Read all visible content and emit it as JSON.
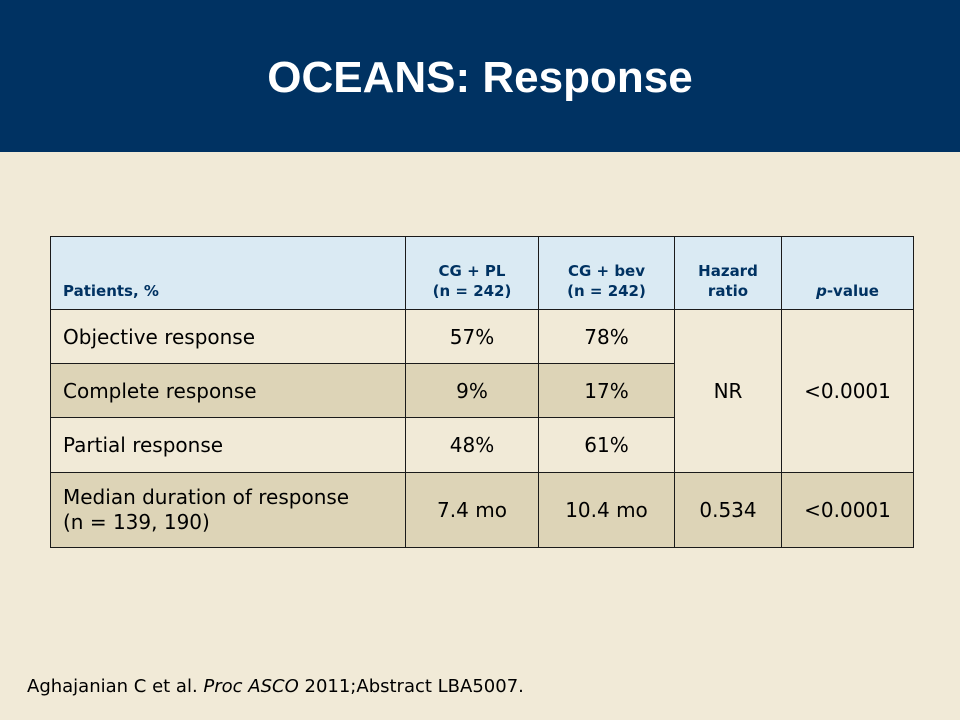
{
  "slide": {
    "title": "OCEANS: Response"
  },
  "table": {
    "headers": {
      "col1": "Patients, %",
      "col2_line1": "CG + PL",
      "col2_line2": "(n = 242)",
      "col3_line1": "CG + bev",
      "col3_line2": "(n = 242)",
      "col4_line1": "Hazard",
      "col4_line2": "ratio",
      "col5_italic": "p",
      "col5_rest": "-value"
    },
    "rows": [
      {
        "label": "Objective response",
        "cgpl": "57%",
        "cgbev": "78%"
      },
      {
        "label": "Complete response",
        "cgpl": "9%",
        "cgbev": "17%"
      },
      {
        "label": "Partial response",
        "cgpl": "48%",
        "cgbev": "61%"
      }
    ],
    "merged": {
      "hazard_ratio": "NR",
      "p_value": "<0.0001"
    },
    "last_row": {
      "label_line1": "Median duration of response",
      "label_line2": "(n = 139, 190)",
      "cgpl": "7.4 mo",
      "cgbev": "10.4 mo",
      "hazard_ratio": "0.534",
      "p_value": "<0.0001"
    }
  },
  "citation": {
    "authors": "Aghajanian C et al. ",
    "journal": "Proc ASCO",
    "rest": " 2011;Abstract LBA5007."
  }
}
